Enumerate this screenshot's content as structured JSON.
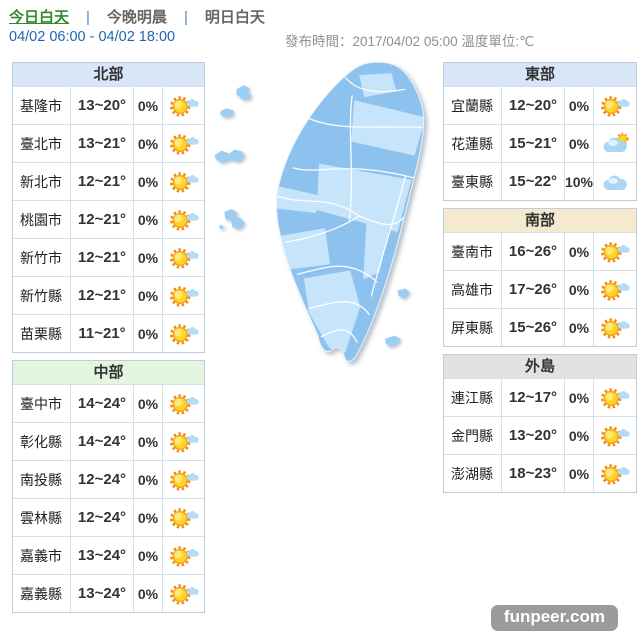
{
  "header": {
    "tabs": [
      {
        "label": "今日白天",
        "active": true
      },
      {
        "label": "今晚明晨",
        "active": false
      },
      {
        "label": "明日白天",
        "active": false
      }
    ],
    "period": "04/02 06:00 - 04/02 18:00",
    "publish_info": "發布時間：2017/04/02 05:00 溫度單位:℃"
  },
  "regions": [
    {
      "title": "北部",
      "theme": "blue",
      "column": "left",
      "rows": [
        {
          "city": "基隆市",
          "temp": "13~20°",
          "pop": "0%",
          "icon": "sun-cloud"
        },
        {
          "city": "臺北市",
          "temp": "13~21°",
          "pop": "0%",
          "icon": "sun-cloud"
        },
        {
          "city": "新北市",
          "temp": "12~21°",
          "pop": "0%",
          "icon": "sun-cloud"
        },
        {
          "city": "桃園市",
          "temp": "12~21°",
          "pop": "0%",
          "icon": "sun-cloud"
        },
        {
          "city": "新竹市",
          "temp": "12~21°",
          "pop": "0%",
          "icon": "sun-cloud"
        },
        {
          "city": "新竹縣",
          "temp": "12~21°",
          "pop": "0%",
          "icon": "sun-cloud"
        },
        {
          "city": "苗栗縣",
          "temp": "11~21°",
          "pop": "0%",
          "icon": "sun-cloud"
        }
      ]
    },
    {
      "title": "中部",
      "theme": "green",
      "column": "left",
      "rows": [
        {
          "city": "臺中市",
          "temp": "14~24°",
          "pop": "0%",
          "icon": "sun-cloud"
        },
        {
          "city": "彰化縣",
          "temp": "14~24°",
          "pop": "0%",
          "icon": "sun-cloud"
        },
        {
          "city": "南投縣",
          "temp": "12~24°",
          "pop": "0%",
          "icon": "sun-cloud"
        },
        {
          "city": "雲林縣",
          "temp": "12~24°",
          "pop": "0%",
          "icon": "sun-cloud"
        },
        {
          "city": "嘉義市",
          "temp": "13~24°",
          "pop": "0%",
          "icon": "sun-cloud"
        },
        {
          "city": "嘉義縣",
          "temp": "13~24°",
          "pop": "0%",
          "icon": "sun-cloud"
        }
      ]
    },
    {
      "title": "東部",
      "theme": "blue",
      "column": "right",
      "rows": [
        {
          "city": "宜蘭縣",
          "temp": "12~20°",
          "pop": "0%",
          "icon": "sun-cloud"
        },
        {
          "city": "花蓮縣",
          "temp": "15~21°",
          "pop": "0%",
          "icon": "cloud-sun"
        },
        {
          "city": "臺東縣",
          "temp": "15~22°",
          "pop": "10%",
          "icon": "cloud"
        }
      ]
    },
    {
      "title": "南部",
      "theme": "cream",
      "column": "right",
      "rows": [
        {
          "city": "臺南市",
          "temp": "16~26°",
          "pop": "0%",
          "icon": "sun-cloud"
        },
        {
          "city": "高雄市",
          "temp": "17~26°",
          "pop": "0%",
          "icon": "sun-cloud"
        },
        {
          "city": "屏東縣",
          "temp": "15~26°",
          "pop": "0%",
          "icon": "sun-cloud"
        }
      ]
    },
    {
      "title": "外島",
      "theme": "gray",
      "column": "right",
      "gap_before": true,
      "rows": [
        {
          "city": "連江縣",
          "temp": "12~17°",
          "pop": "0%",
          "icon": "sun-cloud"
        },
        {
          "city": "金門縣",
          "temp": "13~20°",
          "pop": "0%",
          "icon": "sun-cloud"
        },
        {
          "city": "澎湖縣",
          "temp": "18~23°",
          "pop": "0%",
          "icon": "sun-cloud"
        }
      ]
    }
  ],
  "theme_colors": {
    "blue": "#d7e7f8",
    "green": "#e4f6df",
    "cream": "#f5ead0",
    "gray": "#e2e2e2"
  },
  "icon_names": {
    "sun-cloud": "sunny-with-cloud-icon",
    "cloud-sun": "mostly-cloudy-icon",
    "cloud": "cloudy-icon"
  },
  "map": {
    "base_color": "#8ec2ee",
    "light_color": "#c6e4fa",
    "island_color": "#9ccdf2"
  },
  "watermark": "funpeer.com"
}
